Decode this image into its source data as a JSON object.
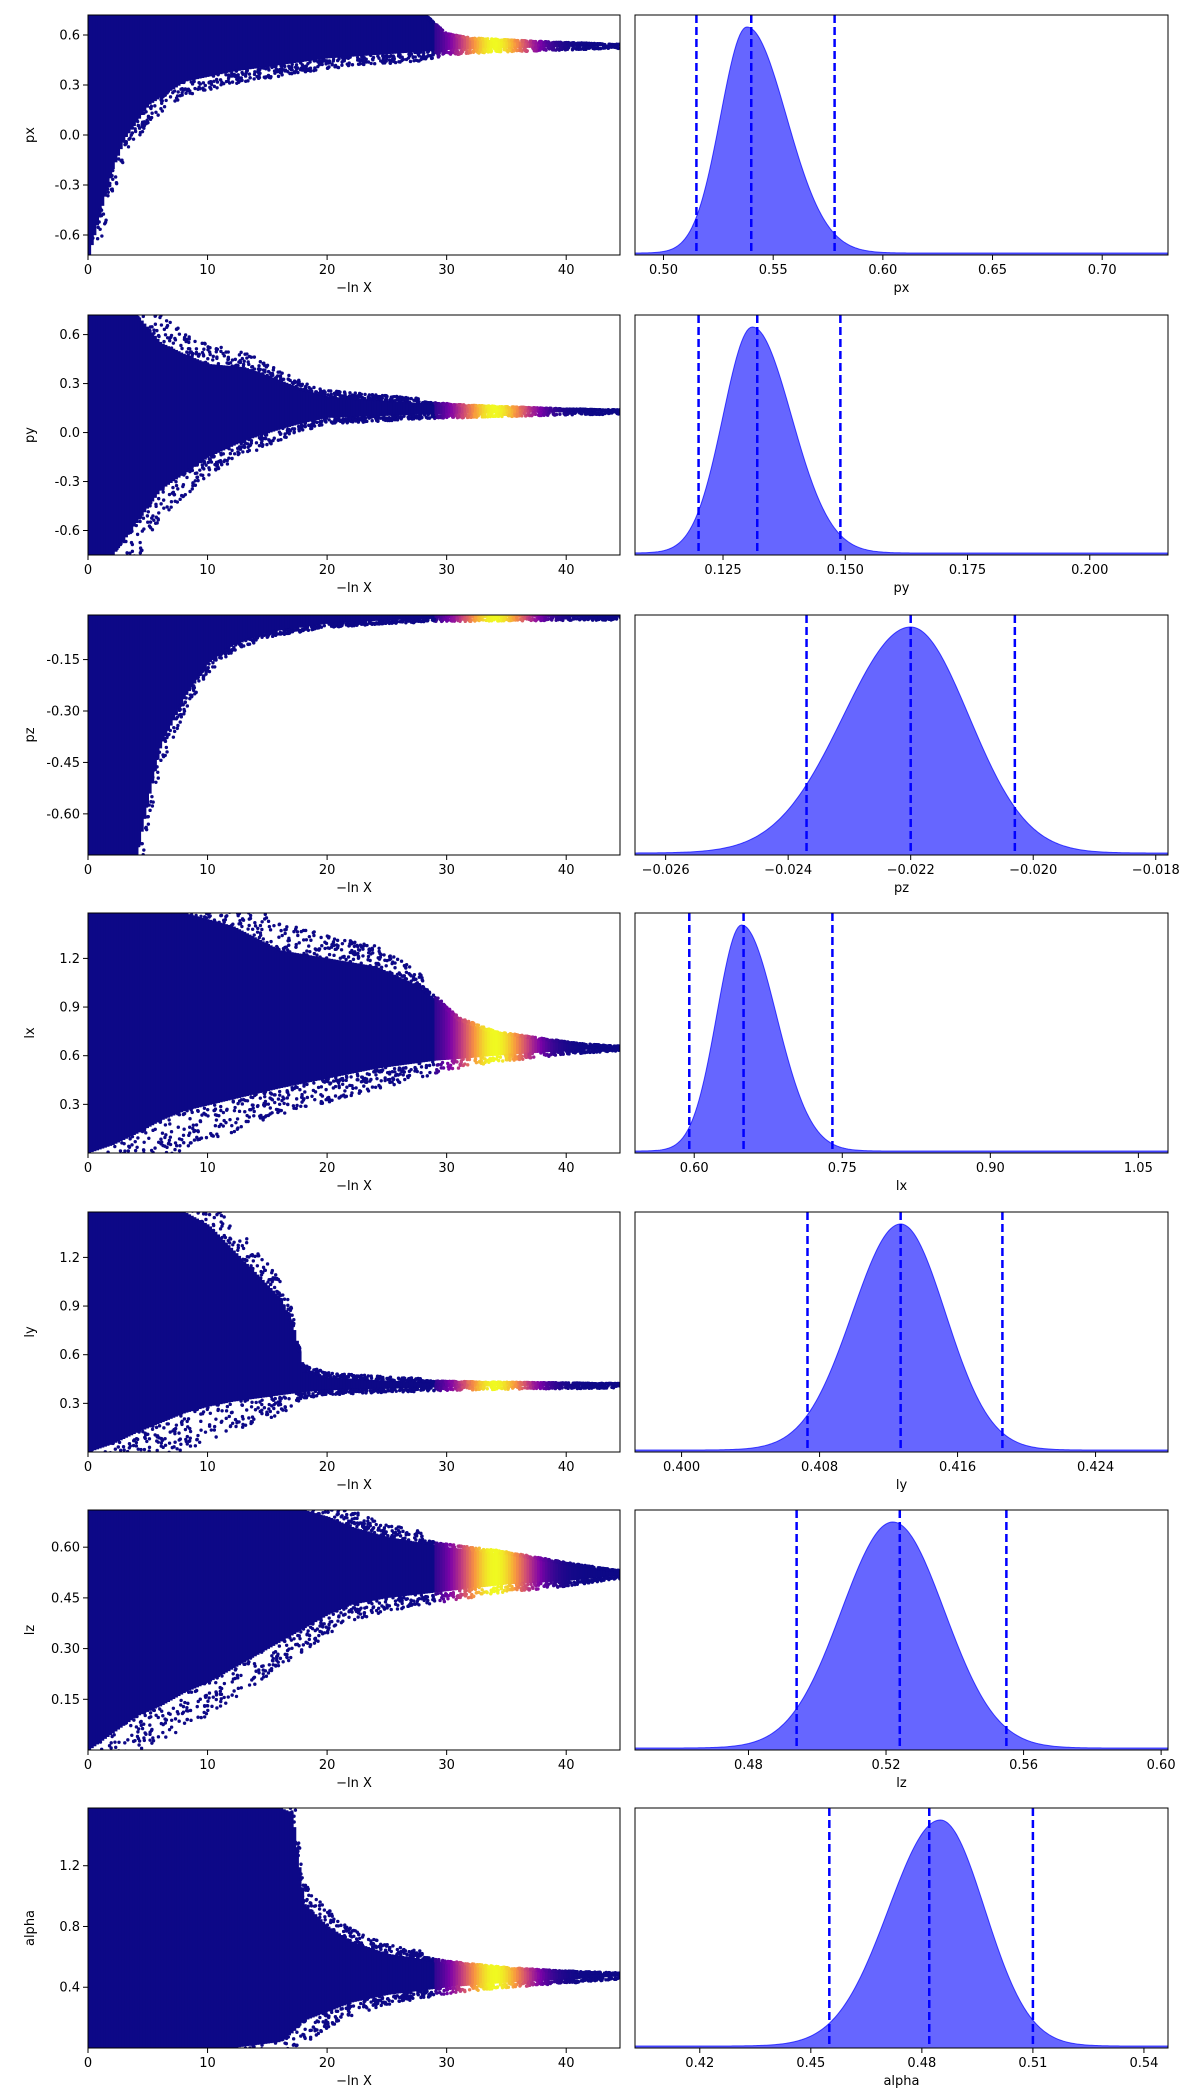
{
  "chart_data": [
    {
      "type": "scatter",
      "parameter": "px",
      "xlabel": "−ln X",
      "ylabel": "px",
      "xlim": [
        0,
        44.5
      ],
      "ylim": [
        -0.72,
        0.72
      ],
      "xticks": [
        "0",
        "10",
        "20",
        "30",
        "40"
      ],
      "yticks": [
        "-0.6",
        "-0.3",
        "0.0",
        "0.3",
        "0.6"
      ],
      "ytick_values": [
        -0.6,
        -0.3,
        0.0,
        0.3,
        0.6
      ],
      "colormap": "plasma",
      "envelope": {
        "x": [
          0,
          1,
          2,
          3,
          5,
          8,
          12,
          16,
          20,
          24,
          28,
          30,
          32,
          35,
          38,
          41,
          44
        ],
        "lower": [
          -0.72,
          -0.45,
          -0.2,
          -0.02,
          0.18,
          0.32,
          0.38,
          0.42,
          0.46,
          0.48,
          0.5,
          0.51,
          0.515,
          0.52,
          0.525,
          0.53,
          0.535
        ],
        "upper": [
          0.72,
          0.72,
          0.72,
          0.72,
          0.72,
          0.72,
          0.72,
          0.72,
          0.72,
          0.72,
          0.72,
          0.6,
          0.575,
          0.565,
          0.555,
          0.548,
          0.54
        ]
      }
    },
    {
      "type": "area",
      "parameter": "px",
      "xlabel": "px",
      "xlim": [
        0.487,
        0.73
      ],
      "xticks": [
        "0.50",
        "0.55",
        "0.60",
        "0.65",
        "0.70"
      ],
      "xtick_values": [
        0.5,
        0.55,
        0.6,
        0.65,
        0.7
      ],
      "color": "#0000ff",
      "peak": 0.538,
      "sigma_left": 0.012,
      "sigma_right": 0.018,
      "quantile_lines": [
        0.515,
        0.54,
        0.578
      ]
    },
    {
      "type": "scatter",
      "parameter": "py",
      "xlabel": "−ln X",
      "ylabel": "py",
      "xlim": [
        0,
        44.5
      ],
      "ylim": [
        -0.75,
        0.72
      ],
      "xticks": [
        "0",
        "10",
        "20",
        "30",
        "40"
      ],
      "yticks": [
        "-0.6",
        "-0.3",
        "0.0",
        "0.3",
        "0.6"
      ],
      "ytick_values": [
        -0.6,
        -0.3,
        0.0,
        0.3,
        0.6
      ],
      "colormap": "plasma",
      "envelope": {
        "x": [
          0,
          2,
          4,
          6,
          8,
          10,
          13,
          16,
          18,
          20,
          24,
          28,
          32,
          36,
          40,
          44
        ],
        "lower": [
          -0.75,
          -0.75,
          -0.55,
          -0.35,
          -0.25,
          -0.15,
          -0.05,
          0.02,
          0.06,
          0.09,
          0.1,
          0.11,
          0.115,
          0.12,
          0.125,
          0.128
        ],
        "upper": [
          0.72,
          0.72,
          0.72,
          0.55,
          0.48,
          0.42,
          0.4,
          0.32,
          0.26,
          0.22,
          0.2,
          0.18,
          0.16,
          0.15,
          0.14,
          0.135
        ]
      }
    },
    {
      "type": "area",
      "parameter": "py",
      "xlabel": "py",
      "xlim": [
        0.107,
        0.216
      ],
      "xticks": [
        "0.125",
        "0.150",
        "0.175",
        "0.200"
      ],
      "xtick_values": [
        0.125,
        0.15,
        0.175,
        0.2
      ],
      "color": "#0000ff",
      "peak": 0.131,
      "sigma_left": 0.006,
      "sigma_right": 0.008,
      "quantile_lines": [
        0.12,
        0.132,
        0.149
      ]
    },
    {
      "type": "scatter",
      "parameter": "pz",
      "xlabel": "−ln X",
      "ylabel": "pz",
      "xlim": [
        0,
        44.5
      ],
      "ylim": [
        -0.72,
        -0.02
      ],
      "xticks": [
        "0",
        "10",
        "20",
        "30",
        "40"
      ],
      "yticks": [
        "-0.15",
        "-0.30",
        "-0.45",
        "-0.60"
      ],
      "ytick_values": [
        -0.15,
        -0.3,
        -0.45,
        -0.6
      ],
      "colormap": "plasma",
      "envelope": {
        "x": [
          0,
          2,
          4,
          5,
          6,
          8,
          10,
          12,
          15,
          20,
          25,
          30,
          35,
          44
        ],
        "lower": [
          -0.72,
          -0.72,
          -0.72,
          -0.55,
          -0.4,
          -0.26,
          -0.16,
          -0.11,
          -0.07,
          -0.045,
          -0.035,
          -0.03,
          -0.028,
          -0.026
        ],
        "upper": [
          -0.02,
          -0.02,
          -0.02,
          -0.02,
          -0.02,
          -0.02,
          -0.02,
          -0.02,
          -0.02,
          -0.02,
          -0.018,
          -0.017,
          -0.016,
          -0.015
        ]
      }
    },
    {
      "type": "area",
      "parameter": "pz",
      "xlabel": "pz",
      "xlim": [
        -0.0265,
        -0.0178
      ],
      "xticks": [
        "−0.026",
        "−0.024",
        "−0.022",
        "−0.020",
        "−0.018"
      ],
      "xtick_values": [
        -0.026,
        -0.024,
        -0.022,
        -0.02,
        -0.018
      ],
      "color": "#0000ff",
      "peak": -0.022,
      "sigma_left": 0.0011,
      "sigma_right": 0.00095,
      "quantile_lines": [
        -0.0237,
        -0.022,
        -0.0203
      ]
    },
    {
      "type": "scatter",
      "parameter": "lx",
      "xlabel": "−ln X",
      "ylabel": "lx",
      "xlim": [
        0,
        44.5
      ],
      "ylim": [
        0.0,
        1.48
      ],
      "xticks": [
        "0",
        "10",
        "20",
        "30",
        "40"
      ],
      "yticks": [
        "0.3",
        "0.6",
        "0.9",
        "1.2"
      ],
      "ytick_values": [
        0.3,
        0.6,
        0.9,
        1.2
      ],
      "colormap": "plasma",
      "envelope": {
        "x": [
          0,
          2,
          4,
          6,
          8,
          12,
          16,
          20,
          24,
          27,
          29,
          31,
          34,
          38,
          41,
          44
        ],
        "lower": [
          0.0,
          0.05,
          0.12,
          0.2,
          0.26,
          0.33,
          0.4,
          0.46,
          0.52,
          0.55,
          0.57,
          0.58,
          0.6,
          0.62,
          0.635,
          0.645
        ],
        "upper": [
          1.48,
          1.48,
          1.48,
          1.48,
          1.48,
          1.4,
          1.25,
          1.2,
          1.15,
          1.05,
          0.95,
          0.82,
          0.74,
          0.7,
          0.67,
          0.655
        ]
      }
    },
    {
      "type": "area",
      "parameter": "lx",
      "xlabel": "lx",
      "xlim": [
        0.54,
        1.08
      ],
      "xticks": [
        "0.60",
        "0.75",
        "0.90",
        "1.05"
      ],
      "xtick_values": [
        0.6,
        0.75,
        0.9,
        1.05
      ],
      "color": "#0000ff",
      "peak": 0.648,
      "sigma_left": 0.025,
      "sigma_right": 0.035,
      "quantile_lines": [
        0.595,
        0.65,
        0.74
      ]
    },
    {
      "type": "scatter",
      "parameter": "ly",
      "xlabel": "−ln X",
      "ylabel": "ly",
      "xlim": [
        0,
        44.5
      ],
      "ylim": [
        0.0,
        1.48
      ],
      "xticks": [
        "0",
        "10",
        "20",
        "30",
        "40"
      ],
      "yticks": [
        "0.3",
        "0.6",
        "0.9",
        "1.2"
      ],
      "ytick_values": [
        0.3,
        0.6,
        0.9,
        1.2
      ],
      "colormap": "plasma",
      "envelope": {
        "x": [
          0,
          2,
          4,
          6,
          8,
          10,
          12,
          14,
          16,
          17,
          18,
          20,
          25,
          30,
          35,
          44
        ],
        "lower": [
          0.0,
          0.05,
          0.12,
          0.18,
          0.24,
          0.28,
          0.31,
          0.33,
          0.35,
          0.36,
          0.37,
          0.38,
          0.39,
          0.4,
          0.405,
          0.41
        ],
        "upper": [
          1.48,
          1.48,
          1.48,
          1.48,
          1.48,
          1.4,
          1.25,
          1.1,
          0.95,
          0.8,
          0.5,
          0.46,
          0.44,
          0.43,
          0.425,
          0.418
        ]
      }
    },
    {
      "type": "area",
      "parameter": "ly",
      "xlabel": "ly",
      "xlim": [
        0.3973,
        0.4282
      ],
      "xticks": [
        "0.400",
        "0.408",
        "0.416",
        "0.424"
      ],
      "xtick_values": [
        0.4,
        0.408,
        0.416,
        0.424
      ],
      "color": "#0000ff",
      "peak": 0.4127,
      "sigma_left": 0.0028,
      "sigma_right": 0.0026,
      "quantile_lines": [
        0.4073,
        0.4127,
        0.4186
      ]
    },
    {
      "type": "scatter",
      "parameter": "lz",
      "xlabel": "−ln X",
      "ylabel": "lz",
      "xlim": [
        0,
        44.5
      ],
      "ylim": [
        0.0,
        0.71
      ],
      "xticks": [
        "0",
        "10",
        "20",
        "30",
        "40"
      ],
      "yticks": [
        "0.15",
        "0.30",
        "0.45",
        "0.60"
      ],
      "ytick_values": [
        0.15,
        0.3,
        0.45,
        0.6
      ],
      "colormap": "plasma",
      "envelope": {
        "x": [
          0,
          2,
          4,
          6,
          8,
          10,
          12,
          15,
          18,
          20,
          22,
          25,
          30,
          35,
          40,
          44
        ],
        "lower": [
          0.0,
          0.05,
          0.1,
          0.13,
          0.17,
          0.2,
          0.24,
          0.3,
          0.36,
          0.4,
          0.43,
          0.45,
          0.47,
          0.49,
          0.5,
          0.515
        ],
        "upper": [
          0.71,
          0.71,
          0.71,
          0.71,
          0.71,
          0.71,
          0.71,
          0.71,
          0.71,
          0.69,
          0.66,
          0.63,
          0.6,
          0.58,
          0.55,
          0.53
        ]
      }
    },
    {
      "type": "area",
      "parameter": "lz",
      "xlabel": "lz",
      "xlim": [
        0.447,
        0.602
      ],
      "xticks": [
        "0.48",
        "0.52",
        "0.56",
        "0.60"
      ],
      "xtick_values": [
        0.48,
        0.52,
        0.56,
        0.6
      ],
      "color": "#0000ff",
      "peak": 0.522,
      "sigma_left": 0.015,
      "sigma_right": 0.015,
      "quantile_lines": [
        0.494,
        0.524,
        0.555
      ]
    },
    {
      "type": "scatter",
      "parameter": "alpha",
      "xlabel": "−ln X",
      "ylabel": "alpha",
      "xlim": [
        0,
        44.5
      ],
      "ylim": [
        0.0,
        1.58
      ],
      "xticks": [
        "0",
        "10",
        "20",
        "30",
        "40"
      ],
      "yticks": [
        "0.4",
        "0.8",
        "1.2"
      ],
      "ytick_values": [
        0.4,
        0.8,
        1.2
      ],
      "colormap": "plasma",
      "envelope": {
        "x": [
          0,
          4,
          8,
          12,
          16,
          17,
          18,
          20,
          22,
          25,
          30,
          35,
          40,
          44
        ],
        "lower": [
          0.0,
          0.0,
          0.0,
          0.0,
          0.04,
          0.1,
          0.18,
          0.24,
          0.3,
          0.35,
          0.4,
          0.43,
          0.45,
          0.47
        ],
        "upper": [
          1.58,
          1.58,
          1.58,
          1.58,
          1.58,
          1.55,
          0.95,
          0.8,
          0.7,
          0.62,
          0.56,
          0.52,
          0.5,
          0.49
        ]
      }
    },
    {
      "type": "area",
      "parameter": "alpha",
      "xlabel": "alpha",
      "xlim": [
        0.4025,
        0.5465
      ],
      "xticks": [
        "0.42",
        "0.45",
        "0.48",
        "0.51",
        "0.54"
      ],
      "xtick_values": [
        0.42,
        0.45,
        0.48,
        0.51,
        0.54
      ],
      "color": "#0000ff",
      "peak": 0.485,
      "sigma_left": 0.014,
      "sigma_right": 0.012,
      "quantile_lines": [
        0.455,
        0.482,
        0.51
      ]
    }
  ]
}
